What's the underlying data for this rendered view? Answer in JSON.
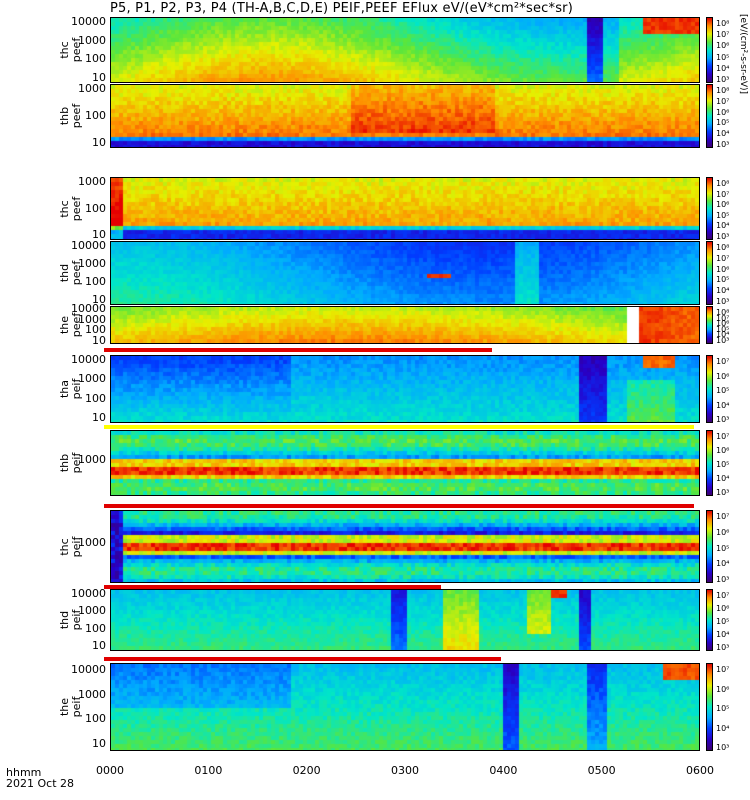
{
  "title": "P5, P1, P2, P3, P4 (TH-A,B,C,D,E) PEIF,PEEF EFlux eV/(eV*cm²*sec*sr)",
  "footer": {
    "time_label": "hhmm",
    "date_label": "2021 Oct 28"
  },
  "colorbar_label": "[eV/(cm²-s-sr-eV)]",
  "x_ticks": [
    "0000",
    "0100",
    "0200",
    "0300",
    "0400",
    "0500",
    "0600"
  ],
  "chart_data": {
    "type": "heatmap",
    "x_range": [
      "00:00",
      "06:00"
    ],
    "panels": [
      {
        "name": "thc_peef",
        "ylabel_1": "thc",
        "ylabel_2": "peef",
        "y_ticks": [
          "10000",
          "1000",
          "100",
          "10"
        ],
        "cbar_ticks": [
          "10⁸",
          "10⁷",
          "10⁶",
          "10⁵",
          "10⁴",
          "10³"
        ],
        "y_scale": "log"
      },
      {
        "name": "thb_peef",
        "ylabel_1": "thb",
        "ylabel_2": "peef",
        "y_ticks": [
          "1000",
          "100",
          "10"
        ],
        "cbar_ticks": [
          "10⁸",
          "10⁷",
          "10⁶",
          "10⁵",
          "10⁴",
          "10³"
        ],
        "y_scale": "log"
      },
      {
        "name": "thc_peef_2",
        "ylabel_1": "thc",
        "ylabel_2": "peef",
        "y_ticks": [
          "1000",
          "100",
          "10"
        ],
        "cbar_ticks": [
          "10⁸",
          "10⁷",
          "10⁶",
          "10⁵",
          "10⁴",
          "10³"
        ],
        "y_scale": "log"
      },
      {
        "name": "thd_peef",
        "ylabel_1": "thd",
        "ylabel_2": "peef",
        "y_ticks": [
          "10000",
          "1000",
          "100",
          "10"
        ],
        "cbar_ticks": [
          "10⁸",
          "10⁷",
          "10⁶",
          "10⁵",
          "10⁴",
          "10³"
        ],
        "y_scale": "log"
      },
      {
        "name": "the_peef",
        "ylabel_1": "the",
        "ylabel_2": "peef",
        "y_ticks": [
          "10000",
          "1000",
          "100",
          "10"
        ],
        "cbar_ticks": [
          "10⁸",
          "10⁷",
          "10⁶",
          "10⁵",
          "10⁴",
          "10³"
        ],
        "y_scale": "log"
      },
      {
        "name": "tha_peif",
        "ylabel_1": "tha",
        "ylabel_2": "peif",
        "y_ticks": [
          "10000",
          "1000",
          "100",
          "10"
        ],
        "cbar_ticks": [
          "10⁷",
          "10⁶",
          "10⁵",
          "10⁴",
          "10³"
        ],
        "y_scale": "log"
      },
      {
        "name": "thb_peif",
        "ylabel_1": "thb",
        "ylabel_2": "peif",
        "y_ticks": [
          "1000"
        ],
        "cbar_ticks": [
          "10⁷",
          "10⁶",
          "10⁵",
          "10⁴",
          "10³"
        ],
        "y_scale": "log"
      },
      {
        "name": "thc_peif",
        "ylabel_1": "thc",
        "ylabel_2": "peif",
        "y_ticks": [
          "1000"
        ],
        "cbar_ticks": [
          "10⁷",
          "10⁶",
          "10⁵",
          "10⁴",
          "10³"
        ],
        "y_scale": "log"
      },
      {
        "name": "thd_peif",
        "ylabel_1": "thd",
        "ylabel_2": "peif",
        "y_ticks": [
          "10000",
          "1000",
          "100",
          "10"
        ],
        "cbar_ticks": [
          "10⁷",
          "10⁶",
          "10⁵",
          "10⁴",
          "10³"
        ],
        "y_scale": "log"
      },
      {
        "name": "the_peif",
        "ylabel_1": "the",
        "ylabel_2": "peif",
        "y_ticks": [
          "10000",
          "1000",
          "100",
          "10"
        ],
        "cbar_ticks": [
          "10⁷",
          "10⁶",
          "10⁵",
          "10⁴",
          "10³"
        ],
        "y_scale": "log"
      }
    ],
    "colormap": "rainbow (purple-blue-cyan-green-yellow-red)"
  }
}
